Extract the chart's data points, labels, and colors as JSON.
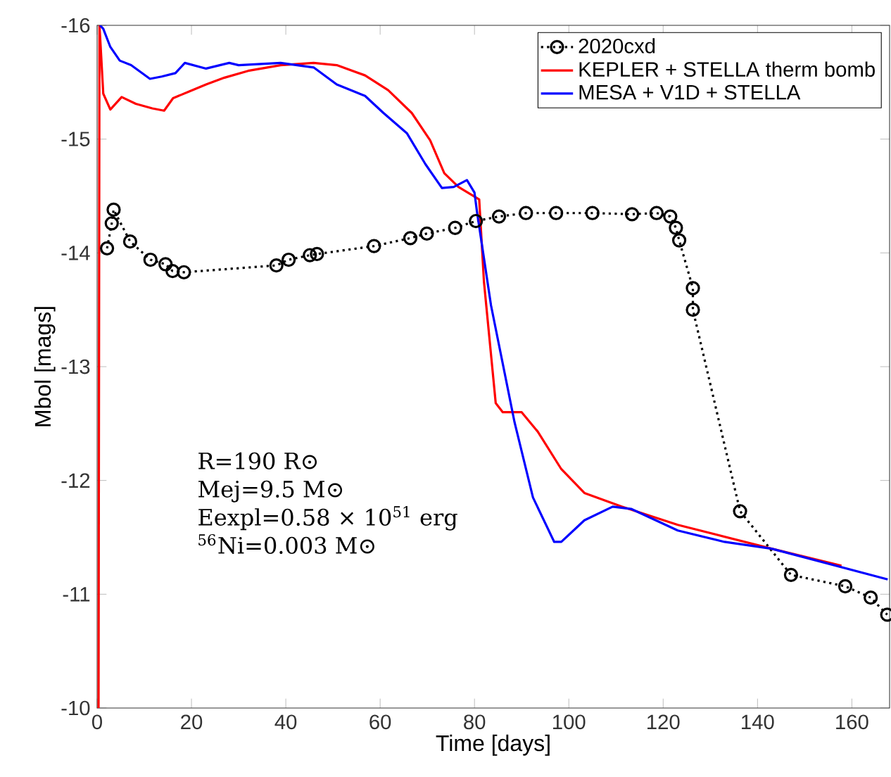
{
  "chart_data": {
    "type": "line",
    "xlabel": "Time [days]",
    "ylabel": "Mbol [mags]",
    "xlim": [
      0,
      168
    ],
    "ylim": [
      -10,
      -16
    ],
    "xticks": [
      0,
      20,
      40,
      60,
      80,
      100,
      120,
      140,
      160
    ],
    "yticks": [
      -16,
      -15,
      -14,
      -13,
      -12,
      -11,
      -10
    ],
    "legend": "top right",
    "annotations": [
      "R=190 R⊙",
      "Mej=9.5 M⊙",
      "Eexpl=0.58 × 10$^{51}$ erg",
      "$^{56}$Ni=0.003 M⊙"
    ],
    "series": [
      {
        "name": "2020cxd",
        "color": "#000000",
        "marker": "circle",
        "line_style": "dotted",
        "x": [
          2.1,
          3.1,
          3.5,
          7.0,
          11.3,
          14.5,
          16.0,
          18.4,
          38.0,
          40.6,
          45.1,
          46.6,
          58.7,
          66.4,
          69.9,
          75.9,
          80.3,
          85.2,
          90.9,
          97.3,
          105.0,
          113.4,
          118.6,
          121.5,
          122.7,
          123.4,
          126.3,
          126.3,
          136.3,
          147.1,
          158.6,
          164.0,
          167.5
        ],
        "values": [
          -14.04,
          -14.26,
          -14.38,
          -14.1,
          -13.94,
          -13.9,
          -13.84,
          -13.83,
          -13.89,
          -13.94,
          -13.98,
          -13.99,
          -14.06,
          -14.13,
          -14.17,
          -14.22,
          -14.28,
          -14.32,
          -14.35,
          -14.35,
          -14.35,
          -14.34,
          -14.35,
          -14.32,
          -14.22,
          -14.11,
          -13.69,
          -13.5,
          -11.73,
          -11.17,
          -11.07,
          -10.97,
          -10.82
        ]
      },
      {
        "name": "KEPLER + STELLA therm bomb",
        "color": "#ff0000",
        "marker": "none",
        "line_style": "solid",
        "x": [
          0.3,
          0.5,
          1.3,
          2.8,
          5.2,
          8.2,
          11.7,
          14.2,
          16.1,
          19.6,
          23.1,
          27.0,
          32.0,
          38.9,
          45.9,
          50.8,
          56.8,
          61.7,
          66.7,
          70.6,
          73.6,
          76.6,
          81.0,
          82.0,
          84.5,
          86.0,
          90.0,
          93.4,
          98.4,
          103.3,
          111.2,
          123.1,
          143.0,
          157.8
        ],
        "values": [
          -10,
          -16,
          -15.4,
          -15.26,
          -15.37,
          -15.31,
          -15.27,
          -15.25,
          -15.36,
          -15.42,
          -15.48,
          -15.54,
          -15.6,
          -15.65,
          -15.67,
          -15.65,
          -15.56,
          -15.43,
          -15.23,
          -14.99,
          -14.7,
          -14.58,
          -14.47,
          -13.75,
          -12.68,
          -12.6,
          -12.6,
          -12.43,
          -12.1,
          -11.89,
          -11.77,
          -11.61,
          -11.4,
          -11.25
        ]
      },
      {
        "name": "MESA + V1D + STELLA",
        "color": "#0000ff",
        "marker": "none",
        "line_style": "solid",
        "x": [
          0.6,
          1.3,
          2.8,
          4.8,
          7.2,
          11.2,
          13.7,
          16.6,
          18.6,
          23.1,
          28.0,
          30.0,
          38.9,
          45.9,
          50.8,
          56.8,
          60.7,
          65.7,
          69.6,
          73.1,
          75.6,
          78.4,
          80.0,
          80.5,
          83.5,
          88.5,
          92.4,
          96.9,
          98.4,
          103.3,
          109.3,
          113.2,
          123.1,
          133.0,
          143.0,
          167.6
        ],
        "values": [
          -16,
          -15.97,
          -15.81,
          -15.69,
          -15.65,
          -15.53,
          -15.55,
          -15.58,
          -15.67,
          -15.62,
          -15.67,
          -15.65,
          -15.67,
          -15.63,
          -15.48,
          -15.38,
          -15.23,
          -15.05,
          -14.78,
          -14.57,
          -14.58,
          -14.64,
          -14.53,
          -14.37,
          -13.54,
          -12.51,
          -11.85,
          -11.46,
          -11.46,
          -11.65,
          -11.77,
          -11.75,
          -11.56,
          -11.46,
          -11.4,
          -11.13
        ]
      }
    ]
  }
}
